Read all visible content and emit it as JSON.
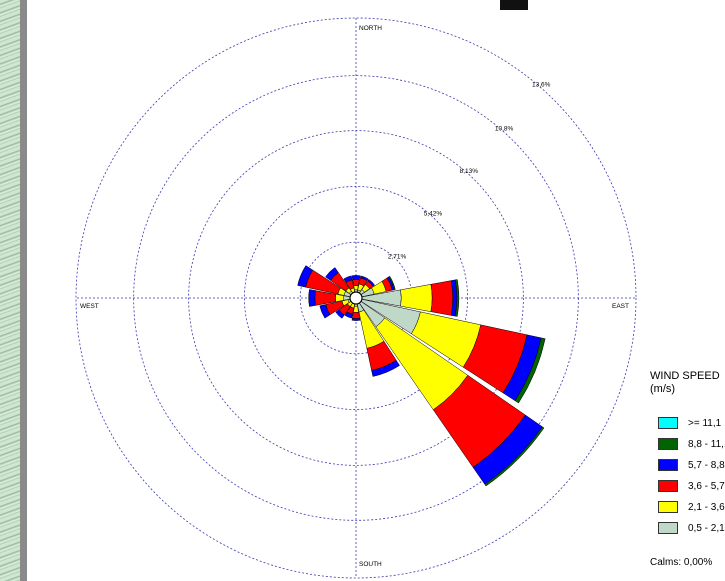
{
  "chart_data": {
    "type": "polar-bar",
    "title": "",
    "directions": [
      "N",
      "NNE",
      "NE",
      "ENE",
      "E",
      "ESE",
      "SE",
      "SSE",
      "S",
      "SSW",
      "SW",
      "WSW",
      "W",
      "WNW",
      "NW",
      "NNW"
    ],
    "compass_labels": {
      "north": "NORTH",
      "south": "SOUTH",
      "east": "EAST",
      "west": "WEST"
    },
    "ring_values": [
      2.71,
      5.42,
      8.13,
      10.8,
      13.6
    ],
    "ring_labels": [
      "2,71%",
      "5,42%",
      "8,13%",
      "10,8%",
      "13,6%"
    ],
    "r_max": 13.6,
    "series": [
      {
        "bin": "0,5-2,1",
        "color": "#c0d8c8",
        "values": [
          0.4,
          0.4,
          0.5,
          0.9,
          2.2,
          3.2,
          1.7,
          0.7,
          0.4,
          0.3,
          0.3,
          0.4,
          0.6,
          0.6,
          0.4,
          0.3
        ]
      },
      {
        "bin": "2,1-3,6",
        "color": "#ffff00",
        "values": [
          0.2,
          0.3,
          0.3,
          0.6,
          1.5,
          3.0,
          4.9,
          1.8,
          0.3,
          0.2,
          0.2,
          0.3,
          0.4,
          0.3,
          0.2,
          0.2
        ]
      },
      {
        "bin": "3,6-5,7",
        "color": "#ff0000",
        "values": [
          0.3,
          0.3,
          0.2,
          0.3,
          1.0,
          2.3,
          3.4,
          1.1,
          0.3,
          0.3,
          0.5,
          0.8,
          1.0,
          1.6,
          0.9,
          0.4
        ]
      },
      {
        "bin": "5,7-8,8",
        "color": "#0000ff",
        "values": [
          0.2,
          0.1,
          0.1,
          0.1,
          0.2,
          0.7,
          1.0,
          0.3,
          0.1,
          0.2,
          0.2,
          0.3,
          0.3,
          0.4,
          0.3,
          0.2
        ]
      },
      {
        "bin": "8,8-11,1",
        "color": "#006400",
        "values": [
          0,
          0,
          0,
          0.05,
          0.1,
          0.2,
          0.1,
          0,
          0,
          0,
          0,
          0,
          0,
          0,
          0,
          0
        ]
      },
      {
        "bin": ">= 11,1",
        "color": "#00ffff",
        "values": [
          0,
          0,
          0,
          0,
          0,
          0,
          0,
          0,
          0,
          0,
          0,
          0,
          0,
          0,
          0,
          0
        ]
      }
    ],
    "legend": {
      "title_line1": "WIND SPEED",
      "title_line2": "(m/s)",
      "entries": [
        ">= 11,1",
        "8,8 - 11,1",
        "5,7 - 8,8",
        "3,6 - 5,7",
        "2,1 - 3,6",
        "0,5 - 2,1"
      ],
      "colors": [
        "#00ffff",
        "#006400",
        "#0000ff",
        "#ff0000",
        "#ffff00",
        "#c0d8c8"
      ],
      "calms": "Calms: 0,00%"
    }
  }
}
